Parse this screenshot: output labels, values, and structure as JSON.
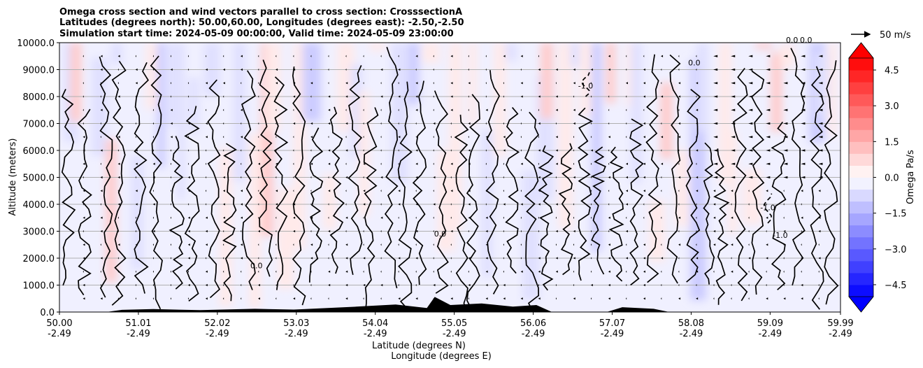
{
  "chart_data": {
    "type": "contour-cross-section",
    "title_lines": [
      "Omega cross section and wind vectors parallel to cross section: CrosssectionA",
      "Latitudes (degrees north): 50.00,60.00, Longitudes (degrees east): -2.50,-2.50",
      "Simulation start time: 2024-05-09 00:00:00, Valid time: 2024-05-09 23:00:00"
    ],
    "ylabel": "Altitude (meters)",
    "xlabel_lat": "Latitude (degrees N)",
    "xlabel_lon": "Longitude (degrees E)",
    "ylim": [
      0,
      10000
    ],
    "y_ticks": [
      "0.0",
      "1000.0",
      "2000.0",
      "3000.0",
      "4000.0",
      "5000.0",
      "6000.0",
      "7000.0",
      "8000.0",
      "9000.0",
      "10000.0"
    ],
    "x_ticks": [
      {
        "lat": "50.00",
        "lon": "-2.49"
      },
      {
        "lat": "51.01",
        "lon": "-2.49"
      },
      {
        "lat": "52.02",
        "lon": "-2.49"
      },
      {
        "lat": "53.03",
        "lon": "-2.49"
      },
      {
        "lat": "54.04",
        "lon": "-2.49"
      },
      {
        "lat": "55.05",
        "lon": "-2.49"
      },
      {
        "lat": "56.06",
        "lon": "-2.49"
      },
      {
        "lat": "57.07",
        "lon": "-2.49"
      },
      {
        "lat": "58.08",
        "lon": "-2.49"
      },
      {
        "lat": "59.09",
        "lon": "-2.49"
      },
      {
        "lat": "59.99",
        "lon": "-2.49"
      }
    ],
    "xlim": [
      50.0,
      59.99
    ],
    "grid": true,
    "colorbar": {
      "label": "Omega Pa/s",
      "range": [
        -5.0,
        5.0
      ],
      "tick_labels": [
        "4.5",
        "3.0",
        "1.5",
        "0.0",
        "−1.5",
        "−3.0",
        "−4.5"
      ],
      "tick_values": [
        4.5,
        3.0,
        1.5,
        0.0,
        -1.5,
        -3.0,
        -4.5
      ],
      "extend": "both",
      "colormap": "bwr"
    },
    "quiver_key": {
      "label": "50 m/s",
      "speed": 50
    },
    "contour_labels": [
      {
        "text": "0.0",
        "lat": 54.87,
        "alt": 2800
      },
      {
        "text": "-1.0",
        "lat": 59.22,
        "alt": 2750
      },
      {
        "text": "0.0",
        "lat": 58.12,
        "alt": 9150
      },
      {
        "text": "0.0",
        "lat": 52.52,
        "alt": 1620
      },
      {
        "text": "0.0",
        "lat": 59.37,
        "alt": 10000
      },
      {
        "text": "0.0",
        "lat": 59.55,
        "alt": 10000
      },
      {
        "text": "-1.0",
        "lat": 59.06,
        "alt": 3780
      },
      {
        "text": "-1.0",
        "lat": 56.73,
        "alt": 8300
      }
    ],
    "contour_levels_shown": [
      0.0,
      -1.0
    ],
    "terrain": "low orography near surface between 50.5 and 57.8 degrees N (black fill)"
  },
  "colors": {
    "positive_max": "#ff0000",
    "negative_max": "#0000ff",
    "neutral": "#ffffff",
    "contour": "#000000",
    "grid": "#b0b0b0"
  }
}
